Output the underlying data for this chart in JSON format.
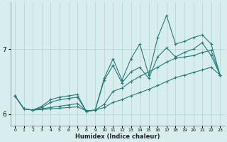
{
  "xlabel": "Humidex (Indice chaleur)",
  "bg_color": "#d8eeee",
  "grid_color": "#b0d4d4",
  "line_color": "#2a7a7a",
  "xlim": [
    -0.5,
    23.5
  ],
  "ylim": [
    5.82,
    7.72
  ],
  "yticks": [
    6,
    7
  ],
  "xticks": [
    0,
    1,
    2,
    3,
    4,
    5,
    6,
    7,
    8,
    9,
    10,
    11,
    12,
    13,
    14,
    15,
    16,
    17,
    18,
    19,
    20,
    21,
    22,
    23
  ],
  "series": [
    {
      "x": [
        0,
        1,
        2,
        3,
        4,
        5,
        6,
        7,
        8,
        9,
        10,
        11,
        12,
        13,
        14,
        15,
        16,
        17,
        18,
        19,
        20,
        21,
        22,
        23
      ],
      "y": [
        6.28,
        6.08,
        6.06,
        6.07,
        6.08,
        6.09,
        6.1,
        6.11,
        6.05,
        6.06,
        6.1,
        6.18,
        6.22,
        6.28,
        6.33,
        6.38,
        6.44,
        6.5,
        6.56,
        6.6,
        6.64,
        6.68,
        6.72,
        6.6
      ]
    },
    {
      "x": [
        0,
        1,
        2,
        3,
        4,
        5,
        6,
        7,
        8,
        9,
        10,
        11,
        12,
        13,
        14,
        15,
        16,
        17,
        18,
        19,
        20,
        21,
        22,
        23
      ],
      "y": [
        6.28,
        6.08,
        6.06,
        6.08,
        6.1,
        6.12,
        6.14,
        6.16,
        6.05,
        6.06,
        6.15,
        6.35,
        6.4,
        6.5,
        6.58,
        6.65,
        6.72,
        6.8,
        6.86,
        6.88,
        6.9,
        6.95,
        6.98,
        6.6
      ]
    },
    {
      "x": [
        0,
        1,
        2,
        3,
        4,
        5,
        6,
        7,
        8,
        9,
        10,
        11,
        12,
        13,
        14,
        15,
        16,
        17,
        18,
        19,
        20,
        21,
        22,
        23
      ],
      "y": [
        6.28,
        6.08,
        6.06,
        6.1,
        6.18,
        6.22,
        6.24,
        6.26,
        6.04,
        6.06,
        6.52,
        6.75,
        6.48,
        6.65,
        6.72,
        6.55,
        6.88,
        7.02,
        6.88,
        6.95,
        7.0,
        7.1,
        6.9,
        6.6
      ]
    },
    {
      "x": [
        0,
        1,
        2,
        3,
        4,
        5,
        6,
        7,
        8,
        9,
        10,
        11,
        12,
        13,
        14,
        15,
        16,
        17,
        18,
        19,
        20,
        21,
        22,
        23
      ],
      "y": [
        6.28,
        6.08,
        6.06,
        6.12,
        6.22,
        6.26,
        6.28,
        6.3,
        6.04,
        6.06,
        6.55,
        6.85,
        6.52,
        6.85,
        7.08,
        6.6,
        7.18,
        7.52,
        7.08,
        7.12,
        7.18,
        7.22,
        7.08,
        6.6
      ]
    }
  ]
}
